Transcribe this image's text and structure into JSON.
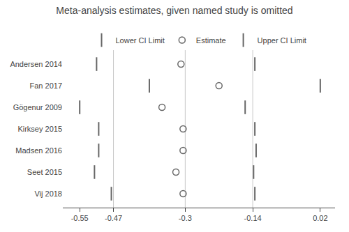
{
  "chart_data": {
    "type": "forest",
    "title": "Meta-analysis estimates, given named study is omitted",
    "orientation": "horizontal",
    "categories": [
      "Andersen 2014",
      "Fan 2017",
      "Gögenur 2009",
      "Kirksey 2015",
      "Madsen 2016",
      "Seet 2015",
      "Vij 2018"
    ],
    "series": [
      {
        "name": "Lower CI Limit",
        "color": "#666666",
        "marker": "tick",
        "values": [
          -0.51,
          -0.385,
          -0.55,
          -0.505,
          -0.505,
          -0.515,
          -0.475
        ]
      },
      {
        "name": "Estimate",
        "color": "#666666",
        "marker": "open_circle",
        "values": [
          -0.31,
          -0.22,
          -0.355,
          -0.305,
          -0.305,
          -0.322,
          -0.305
        ]
      },
      {
        "name": "Upper CI Limit",
        "color": "#666666",
        "marker": "tick",
        "values": [
          -0.135,
          0.02,
          -0.158,
          -0.135,
          -0.132,
          -0.138,
          -0.135
        ]
      }
    ],
    "xlim": [
      -0.59,
      0.055
    ],
    "xticks": [
      -0.55,
      -0.47,
      -0.3,
      -0.14,
      0.02
    ],
    "vlines": [
      -0.47,
      -0.3,
      -0.14
    ],
    "grid": false,
    "legend": "top"
  }
}
